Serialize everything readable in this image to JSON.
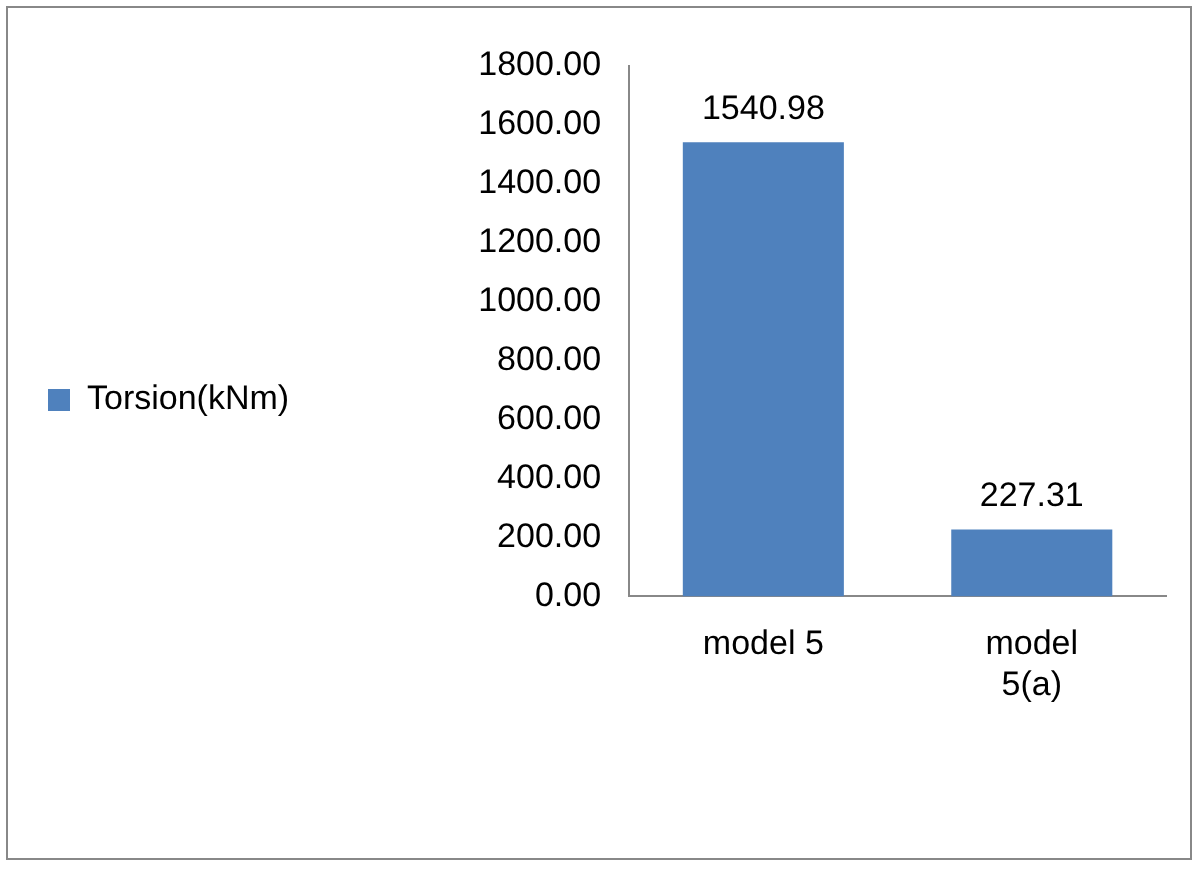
{
  "chart_data": {
    "type": "bar",
    "categories": [
      "model 5",
      "model 5(a)"
    ],
    "series": [
      {
        "name": "Torsion(kNm)",
        "color": "#4f81bd",
        "values": [
          1540.98,
          227.31
        ]
      }
    ],
    "ylim": [
      0,
      1800
    ],
    "yticks": [
      {
        "value": 0,
        "label": "0.00"
      },
      {
        "value": 200,
        "label": "200.00"
      },
      {
        "value": 400,
        "label": "400.00"
      },
      {
        "value": 600,
        "label": "600.00"
      },
      {
        "value": 800,
        "label": "800.00"
      },
      {
        "value": 1000,
        "label": "1000.00"
      },
      {
        "value": 1200,
        "label": "1200.00"
      },
      {
        "value": 1400,
        "label": "1400.00"
      },
      {
        "value": 1600,
        "label": "1600.00"
      },
      {
        "value": 1800,
        "label": "1800.00"
      }
    ],
    "grid": false,
    "legend": "left",
    "data_labels": true
  }
}
